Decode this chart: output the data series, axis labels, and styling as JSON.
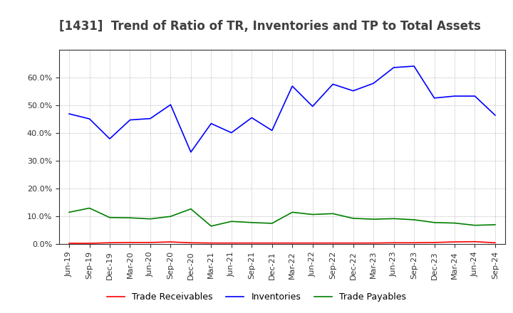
{
  "title": "[1431]  Trend of Ratio of TR, Inventories and TP to Total Assets",
  "labels": [
    "Jun-19",
    "Sep-19",
    "Dec-19",
    "Mar-20",
    "Jun-20",
    "Sep-20",
    "Dec-20",
    "Mar-21",
    "Jun-21",
    "Sep-21",
    "Dec-21",
    "Mar-22",
    "Jun-22",
    "Sep-22",
    "Dec-22",
    "Mar-23",
    "Jun-23",
    "Sep-23",
    "Dec-23",
    "Mar-24",
    "Jun-24",
    "Sep-24"
  ],
  "trade_receivables": [
    0.003,
    0.003,
    0.005,
    0.006,
    0.006,
    0.008,
    0.005,
    0.004,
    0.004,
    0.004,
    0.004,
    0.004,
    0.004,
    0.004,
    0.004,
    0.004,
    0.005,
    0.005,
    0.006,
    0.008,
    0.009,
    0.005
  ],
  "inventories": [
    0.47,
    0.452,
    0.38,
    0.448,
    0.453,
    0.503,
    0.332,
    0.435,
    0.402,
    0.456,
    0.41,
    0.57,
    0.497,
    0.577,
    0.553,
    0.58,
    0.637,
    0.642,
    0.527,
    0.534,
    0.534,
    0.465
  ],
  "trade_payables": [
    0.115,
    0.13,
    0.096,
    0.095,
    0.091,
    0.1,
    0.127,
    0.065,
    0.082,
    0.078,
    0.075,
    0.115,
    0.107,
    0.11,
    0.093,
    0.09,
    0.092,
    0.088,
    0.078,
    0.076,
    0.068,
    0.07
  ],
  "tr_color": "#ff0000",
  "inv_color": "#0000ff",
  "tp_color": "#008000",
  "ylim": [
    0.0,
    0.7
  ],
  "yticks": [
    0.0,
    0.1,
    0.2,
    0.3,
    0.4,
    0.5,
    0.6
  ],
  "background_color": "#ffffff",
  "plot_bg_color": "#ffffff",
  "grid_color": "#888888",
  "title_fontsize": 12,
  "tick_fontsize": 8,
  "legend_fontsize": 9,
  "title_color": "#404040"
}
